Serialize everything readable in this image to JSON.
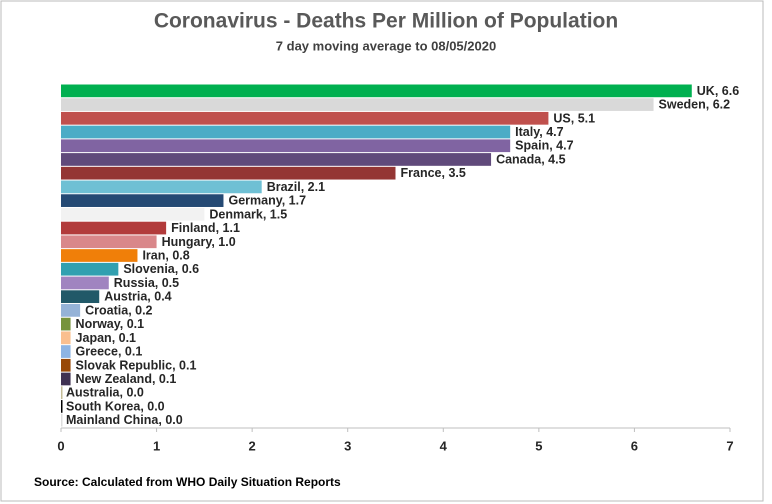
{
  "chart_data": {
    "type": "bar",
    "orientation": "horizontal",
    "title": "Coronavirus - Deaths Per Million of Population",
    "subtitle": "7 day moving average to 08/05/2020",
    "source": "Source: Calculated from WHO Daily Situation Reports",
    "categories": [
      "UK",
      "Sweden",
      "US",
      "Italy",
      "Spain",
      "Canada",
      "France",
      "Brazil",
      "Germany",
      "Denmark",
      "Finland",
      "Hungary",
      "Iran",
      "Slovenia",
      "Russia",
      "Austria",
      "Croatia",
      "Norway",
      "Japan",
      "Greece",
      "Slovak Republic",
      "New Zealand",
      "Australia",
      "South Korea",
      "Mainland China"
    ],
    "values": [
      6.6,
      6.2,
      5.1,
      4.7,
      4.7,
      4.5,
      3.5,
      2.1,
      1.7,
      1.5,
      1.1,
      1.0,
      0.8,
      0.6,
      0.5,
      0.4,
      0.2,
      0.1,
      0.1,
      0.1,
      0.1,
      0.1,
      0.0,
      0.0,
      0.0
    ],
    "value_labels": [
      ", 6.6",
      ", 6.2",
      ", 5.1",
      ", 4.7",
      ", 4.7",
      ", 4.5",
      ", 3.5",
      ", 2.1",
      ", 1.7",
      ", 1.5",
      ", 1.1",
      ", 1.0",
      ", 0.8",
      ", 0.6",
      ", 0.5",
      ", 0.4",
      ", 0.2",
      ", 0.1",
      ", 0.1",
      ", 0.1",
      ", 0.1",
      ", 0.1",
      ", 0.0",
      ", 0.0",
      ", 0.0"
    ],
    "colors": [
      "#00b050",
      "#d9d9d9",
      "#c0504d",
      "#4bacc6",
      "#8064a2",
      "#604a7b",
      "#943634",
      "#6fc0d4",
      "#254a74",
      "#f2f2f2",
      "#b23b3b",
      "#d9878a",
      "#f07f09",
      "#31a0b0",
      "#a084c0",
      "#215968",
      "#95b3d7",
      "#77933c",
      "#fabf8f",
      "#8eb4e3",
      "#984807",
      "#3f3151",
      "#c4bd97",
      "#000000",
      "#dddddd"
    ],
    "xlim": [
      0,
      7
    ],
    "xticks": [
      0,
      1,
      2,
      3,
      4,
      5,
      6,
      7
    ]
  }
}
